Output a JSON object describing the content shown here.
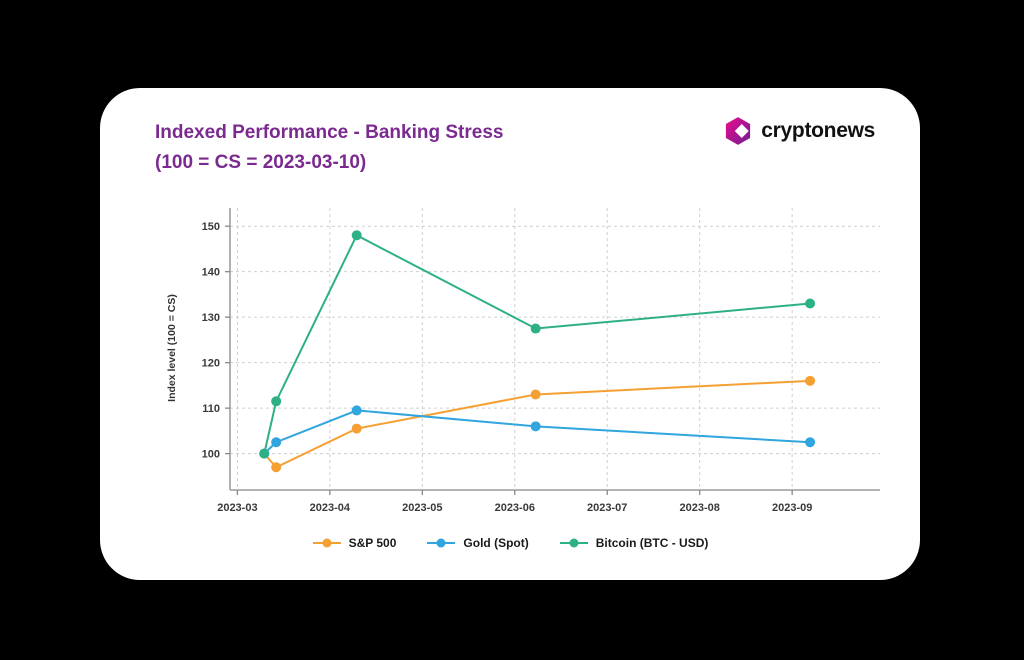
{
  "card": {
    "title_line1": "Indexed Performance - Banking Stress",
    "title_line2": "(100 = CS = 2023-03-10)"
  },
  "brand": {
    "name": "cryptonews"
  },
  "colors": {
    "page_bg": "#000000",
    "card_bg": "#ffffff",
    "title_color": "#7B2A8F",
    "brand_text": "#111111",
    "brand_gradient_start": "#EE0B8C",
    "brand_gradient_end": "#6D1F94",
    "grid": "#cfcfcf",
    "axis": "#888888"
  },
  "chart_data": {
    "type": "line",
    "title": "Indexed Performance - Banking Stress (100 = CS = 2023-03-10)",
    "xlabel": "",
    "ylabel": "Index level (100 = CS)",
    "x_tick_labels": [
      "2023-03",
      "2023-04",
      "2023-05",
      "2023-06",
      "2023-07",
      "2023-08",
      "2023-09"
    ],
    "y_ticks": [
      100,
      110,
      120,
      130,
      140,
      150
    ],
    "ylim": [
      92,
      154
    ],
    "grid": true,
    "grid_style": "dashed",
    "legend_position": "bottom",
    "x": [
      "2023-03-10",
      "2023-03-14",
      "2023-04-10",
      "2023-06-08",
      "2023-09-07"
    ],
    "series": [
      {
        "name": "S&P 500",
        "color": "#F5A033",
        "values": [
          100,
          97,
          105.5,
          113,
          116
        ]
      },
      {
        "name": "Gold (Spot)",
        "color": "#30A5DE",
        "values": [
          100,
          102.5,
          109.5,
          106,
          102.5
        ]
      },
      {
        "name": "Bitcoin (BTC - USD)",
        "color": "#2EB086",
        "values": [
          100,
          111.5,
          148,
          127.5,
          133
        ]
      }
    ]
  }
}
